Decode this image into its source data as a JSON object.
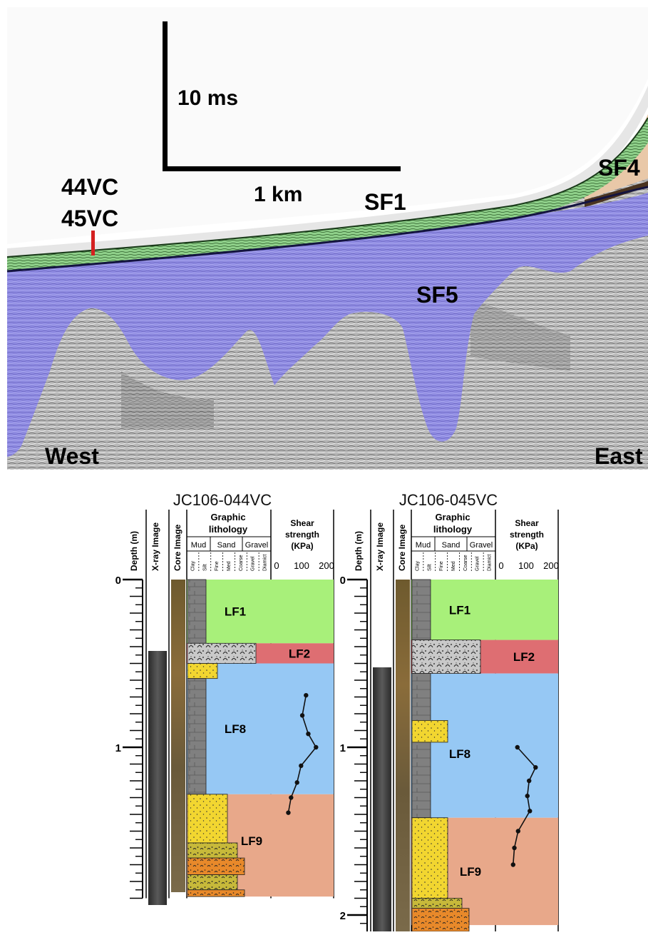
{
  "profile": {
    "scale_time": "10 ms",
    "scale_distance": "1 km",
    "core_labels": [
      "44VC",
      "45VC"
    ],
    "units": [
      "SF1",
      "SF4",
      "SF5"
    ],
    "direction_left": "West",
    "direction_right": "East"
  },
  "header_labels": {
    "depth": "Depth (m)",
    "xray": "X-ray Image",
    "core": "Core Image",
    "graphic_lithology": [
      "Graphic",
      "lithology"
    ],
    "shear_strength": [
      "Shear",
      "strength",
      "(KPa)"
    ],
    "groups": [
      "Mud",
      "Sand",
      "Gravel"
    ],
    "classes": [
      "Clay",
      "Silt",
      "Fine",
      "Med",
      "Coarse",
      "Gravel",
      "Diamict"
    ],
    "shear_ticks": [
      "0",
      "100",
      "200"
    ]
  },
  "colors": {
    "LF1": "#a8f07a",
    "LF2": "#de6e72",
    "LF8": "#96c8f4",
    "LF9": "#e8a88a",
    "SF1": "#8fd08a",
    "SF4": "#e8c7aa",
    "SF5": "#8a86e8",
    "mud": "#7f7f7f",
    "sand": "#f0d22a",
    "gravel_sand": "#c8b83a",
    "orange": "#e88a2a"
  },
  "cores": [
    {
      "title": "JC106-044VC",
      "depth_ticks": [
        "0",
        "1"
      ],
      "units": [
        {
          "label": "LF1",
          "top": 0.0,
          "base": 0.38
        },
        {
          "label": "LF2",
          "top": 0.38,
          "base": 0.5
        },
        {
          "label": "LF8",
          "top": 0.5,
          "base": 1.28
        },
        {
          "label": "LF9",
          "top": 1.28,
          "base": 1.89
        }
      ],
      "shear_strength": [
        {
          "depth": 0.69,
          "kpa": 118
        },
        {
          "depth": 0.81,
          "kpa": 103
        },
        {
          "depth": 0.92,
          "kpa": 127
        },
        {
          "depth": 1.0,
          "kpa": 158
        },
        {
          "depth": 1.11,
          "kpa": 98
        },
        {
          "depth": 1.21,
          "kpa": 82
        },
        {
          "depth": 1.3,
          "kpa": 58
        },
        {
          "depth": 1.39,
          "kpa": 47
        }
      ]
    },
    {
      "title": "JC106-045VC",
      "depth_ticks": [
        "0",
        "1",
        "2"
      ],
      "units": [
        {
          "label": "LF1",
          "top": 0.0,
          "base": 0.36
        },
        {
          "label": "LF2",
          "top": 0.36,
          "base": 0.56
        },
        {
          "label": "LF8",
          "top": 0.56,
          "base": 1.42
        },
        {
          "label": "LF9",
          "top": 1.42,
          "base": 2.06
        }
      ],
      "shear_strength": [
        {
          "depth": 1.0,
          "kpa": 65
        },
        {
          "depth": 1.12,
          "kpa": 138
        },
        {
          "depth": 1.2,
          "kpa": 112
        },
        {
          "depth": 1.29,
          "kpa": 105
        },
        {
          "depth": 1.38,
          "kpa": 115
        },
        {
          "depth": 1.5,
          "kpa": 68
        },
        {
          "depth": 1.6,
          "kpa": 53
        },
        {
          "depth": 1.7,
          "kpa": 48
        }
      ]
    }
  ]
}
